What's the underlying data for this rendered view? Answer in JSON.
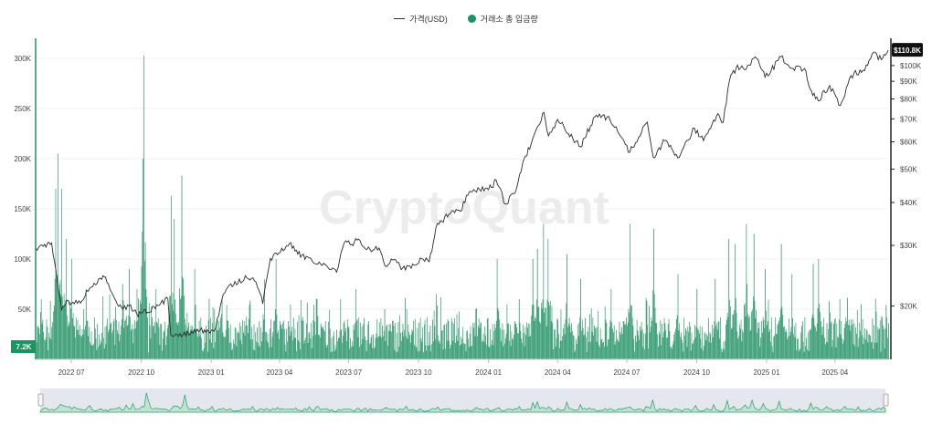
{
  "legend": {
    "price_label": "가격(USD)",
    "inflow_label": "거래소 총 입금량"
  },
  "watermark": "CryptoQuant",
  "colors": {
    "price_line": "#2b2b2b",
    "bars": "#1a9462",
    "bars_dark": "#0d7a4f",
    "axis_left": "#1a9462",
    "price_badge_bg": "#111111",
    "badge_left_bg": "#1a9462"
  },
  "badges": {
    "last_price": "$110.8K",
    "last_inflow": "7.2K"
  },
  "chart_data": {
    "type": "bar+line",
    "x_range": [
      "2022-05-15",
      "2025-06-10"
    ],
    "left_axis": {
      "ticks": [
        50000,
        100000,
        150000,
        200000,
        250000,
        300000
      ],
      "tick_labels": [
        "50K",
        "100K",
        "150K",
        "200K",
        "250K",
        "300K"
      ],
      "ylim": [
        0,
        320000
      ]
    },
    "right_axis": {
      "scale": "log",
      "ticks": [
        20000,
        30000,
        40000,
        50000,
        60000,
        70000,
        80000,
        90000,
        100000
      ],
      "tick_labels": [
        "$20K",
        "$30K",
        "$40K",
        "$50K",
        "$60K",
        "$70K",
        "$80K",
        "$90K",
        "$100K"
      ],
      "ylim": [
        14000,
        120000
      ]
    },
    "x_ticks": [
      {
        "date": "2022-07-01",
        "label": "2022 07"
      },
      {
        "date": "2022-10-01",
        "label": "2022 10"
      },
      {
        "date": "2023-01-01",
        "label": "2023 01"
      },
      {
        "date": "2023-04-01",
        "label": "2023 04"
      },
      {
        "date": "2023-07-01",
        "label": "2023 07"
      },
      {
        "date": "2023-10-01",
        "label": "2023 10"
      },
      {
        "date": "2024-01-01",
        "label": "2024 01"
      },
      {
        "date": "2024-04-01",
        "label": "2024 04"
      },
      {
        "date": "2024-07-01",
        "label": "2024 07"
      },
      {
        "date": "2024-10-01",
        "label": "2024 10"
      },
      {
        "date": "2025-01-01",
        "label": "2025 01"
      },
      {
        "date": "2025-04-01",
        "label": "2025 04"
      }
    ],
    "price_series": {
      "name": "가격(USD)",
      "points": [
        [
          "2022-05-15",
          29500
        ],
        [
          "2022-05-25",
          29800
        ],
        [
          "2022-06-05",
          30500
        ],
        [
          "2022-06-13",
          23000
        ],
        [
          "2022-06-18",
          19500
        ],
        [
          "2022-06-25",
          20800
        ],
        [
          "2022-07-05",
          20300
        ],
        [
          "2022-07-15",
          20700
        ],
        [
          "2022-07-25",
          22500
        ],
        [
          "2022-08-10",
          23900
        ],
        [
          "2022-08-15",
          24300
        ],
        [
          "2022-08-25",
          21500
        ],
        [
          "2022-09-05",
          19800
        ],
        [
          "2022-09-15",
          20000
        ],
        [
          "2022-09-25",
          19000
        ],
        [
          "2022-10-10",
          19200
        ],
        [
          "2022-10-25",
          20100
        ],
        [
          "2022-11-05",
          21000
        ],
        [
          "2022-11-09",
          16500
        ],
        [
          "2022-11-15",
          16600
        ],
        [
          "2022-11-25",
          16500
        ],
        [
          "2022-12-10",
          17100
        ],
        [
          "2022-12-25",
          16800
        ],
        [
          "2023-01-05",
          16900
        ],
        [
          "2023-01-15",
          20800
        ],
        [
          "2023-01-25",
          23000
        ],
        [
          "2023-02-05",
          23200
        ],
        [
          "2023-02-15",
          24500
        ],
        [
          "2023-03-01",
          23500
        ],
        [
          "2023-03-10",
          20300
        ],
        [
          "2023-03-20",
          27500
        ],
        [
          "2023-03-31",
          28500
        ],
        [
          "2023-04-14",
          30400
        ],
        [
          "2023-04-25",
          28300
        ],
        [
          "2023-05-10",
          27600
        ],
        [
          "2023-05-25",
          26500
        ],
        [
          "2023-06-10",
          25800
        ],
        [
          "2023-06-15",
          25100
        ],
        [
          "2023-06-25",
          30500
        ],
        [
          "2023-07-05",
          30200
        ],
        [
          "2023-07-14",
          31300
        ],
        [
          "2023-07-25",
          29200
        ],
        [
          "2023-08-10",
          29500
        ],
        [
          "2023-08-18",
          26100
        ],
        [
          "2023-08-30",
          27300
        ],
        [
          "2023-09-10",
          25800
        ],
        [
          "2023-09-25",
          26300
        ],
        [
          "2023-10-05",
          27500
        ],
        [
          "2023-10-15",
          26900
        ],
        [
          "2023-10-24",
          33900
        ],
        [
          "2023-11-10",
          37000
        ],
        [
          "2023-11-25",
          37700
        ],
        [
          "2023-12-05",
          42000
        ],
        [
          "2023-12-20",
          43700
        ],
        [
          "2024-01-05",
          44200
        ],
        [
          "2024-01-11",
          46500
        ],
        [
          "2024-01-23",
          39600
        ],
        [
          "2024-02-05",
          42600
        ],
        [
          "2024-02-15",
          52000
        ],
        [
          "2024-02-28",
          61000
        ],
        [
          "2024-03-05",
          66000
        ],
        [
          "2024-03-14",
          73100
        ],
        [
          "2024-03-20",
          62500
        ],
        [
          "2024-04-01",
          69700
        ],
        [
          "2024-04-15",
          63500
        ],
        [
          "2024-05-01",
          58000
        ],
        [
          "2024-05-20",
          71000
        ],
        [
          "2024-06-05",
          70800
        ],
        [
          "2024-06-25",
          61500
        ],
        [
          "2024-07-05",
          56000
        ],
        [
          "2024-07-28",
          68500
        ],
        [
          "2024-08-05",
          54000
        ],
        [
          "2024-08-20",
          60500
        ],
        [
          "2024-09-06",
          53900
        ],
        [
          "2024-09-28",
          65800
        ],
        [
          "2024-10-10",
          60500
        ],
        [
          "2024-10-29",
          72500
        ],
        [
          "2024-11-05",
          68500
        ],
        [
          "2024-11-13",
          90000
        ],
        [
          "2024-11-22",
          98500
        ],
        [
          "2024-12-05",
          97500
        ],
        [
          "2024-12-17",
          106000
        ],
        [
          "2024-12-30",
          92500
        ],
        [
          "2025-01-07",
          96500
        ],
        [
          "2025-01-20",
          106000
        ],
        [
          "2025-02-05",
          98000
        ],
        [
          "2025-02-20",
          98000
        ],
        [
          "2025-03-01",
          84500
        ],
        [
          "2025-03-10",
          79000
        ],
        [
          "2025-03-25",
          87500
        ],
        [
          "2025-04-08",
          76500
        ],
        [
          "2025-04-22",
          93500
        ],
        [
          "2025-05-08",
          97000
        ],
        [
          "2025-05-22",
          109500
        ],
        [
          "2025-06-01",
          104000
        ],
        [
          "2025-06-10",
          110800
        ]
      ]
    },
    "inflow_series": {
      "name": "거래소 총 입금량",
      "baseline_min": 7000,
      "baseline_max": 42000,
      "spikes": [
        [
          "2022-05-22",
          60000
        ],
        [
          "2022-06-10",
          170000
        ],
        [
          "2022-06-13",
          205000
        ],
        [
          "2022-06-18",
          170000
        ],
        [
          "2022-06-24",
          120000
        ],
        [
          "2022-07-01",
          100000
        ],
        [
          "2022-07-20",
          70000
        ],
        [
          "2022-08-20",
          65000
        ],
        [
          "2022-09-06",
          75000
        ],
        [
          "2022-09-15",
          90000
        ],
        [
          "2022-09-25",
          70000
        ],
        [
          "2022-10-03",
          200000
        ],
        [
          "2022-10-04",
          303000
        ],
        [
          "2022-10-20",
          70000
        ],
        [
          "2022-11-09",
          163000
        ],
        [
          "2022-11-13",
          140000
        ],
        [
          "2022-11-23",
          183000
        ],
        [
          "2022-12-10",
          90000
        ],
        [
          "2023-01-15",
          60000
        ],
        [
          "2023-02-20",
          55000
        ],
        [
          "2023-03-12",
          80000
        ],
        [
          "2023-03-27",
          100000
        ],
        [
          "2023-04-15",
          55000
        ],
        [
          "2023-05-20",
          60000
        ],
        [
          "2023-06-20",
          60000
        ],
        [
          "2023-07-10",
          70000
        ],
        [
          "2023-08-17",
          50000
        ],
        [
          "2023-09-15",
          50000
        ],
        [
          "2023-10-24",
          65000
        ],
        [
          "2023-11-20",
          45000
        ],
        [
          "2023-12-15",
          50000
        ],
        [
          "2024-01-12",
          100000
        ],
        [
          "2024-01-25",
          55000
        ],
        [
          "2024-02-10",
          60000
        ],
        [
          "2024-02-28",
          100000
        ],
        [
          "2024-03-05",
          110000
        ],
        [
          "2024-03-13",
          135000
        ],
        [
          "2024-03-19",
          120000
        ],
        [
          "2024-04-13",
          105000
        ],
        [
          "2024-05-01",
          80000
        ],
        [
          "2024-06-10",
          70000
        ],
        [
          "2024-07-05",
          135000
        ],
        [
          "2024-08-05",
          130000
        ],
        [
          "2024-09-06",
          85000
        ],
        [
          "2024-10-01",
          70000
        ],
        [
          "2024-10-25",
          80000
        ],
        [
          "2024-11-12",
          120000
        ],
        [
          "2024-11-20",
          115000
        ],
        [
          "2024-12-05",
          135000
        ],
        [
          "2024-12-15",
          125000
        ],
        [
          "2024-12-30",
          90000
        ],
        [
          "2025-01-20",
          115000
        ],
        [
          "2025-02-03",
          85000
        ],
        [
          "2025-03-03",
          95000
        ],
        [
          "2025-03-10",
          100000
        ],
        [
          "2025-04-07",
          60000
        ],
        [
          "2025-05-05",
          55000
        ],
        [
          "2025-06-10",
          48000
        ]
      ],
      "last_value": 7200
    },
    "grid": true
  }
}
